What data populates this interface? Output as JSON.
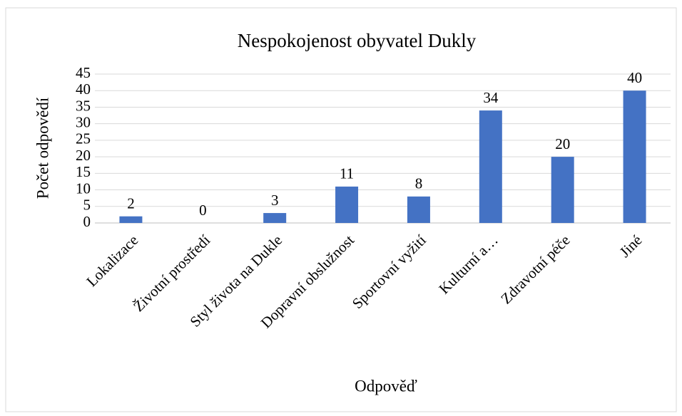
{
  "chart_data": {
    "type": "bar",
    "title": "Nespokojenost obyvatel Dukly",
    "x_label": "Odpověď",
    "y_label": "Počet odpovědí",
    "categories": [
      "Lokalizace",
      "Životní prostředí",
      "Styl života na Dukle",
      "Dopravní obslužnost",
      "Sportovní vyžití",
      "Kulturní a…",
      "Zdravotní péče",
      "Jiné"
    ],
    "values": [
      2,
      0,
      3,
      11,
      8,
      34,
      20,
      40
    ],
    "color": "#4472c4",
    "ylim": [
      0,
      45
    ],
    "yticks": [
      0,
      5,
      10,
      15,
      20,
      25,
      30,
      35,
      40,
      45
    ],
    "grid": true
  }
}
